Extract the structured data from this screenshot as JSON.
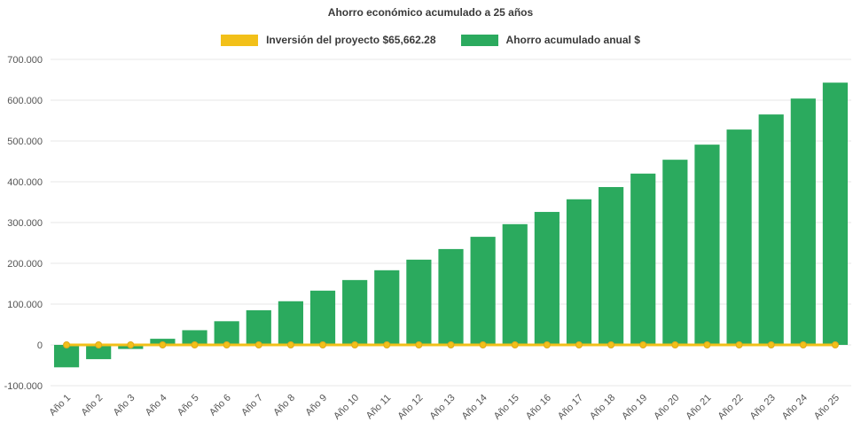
{
  "title": "Ahorro económico acumulado a 25 años",
  "legend": [
    {
      "label": "Inversión del proyecto $65,662.28",
      "color": "#F2C019"
    },
    {
      "label": "Ahorro acumulado anual $",
      "color": "#2BAA5E"
    }
  ],
  "chart_data": {
    "type": "bar",
    "title": "Ahorro económico acumulado a 25 años",
    "xlabel": "",
    "ylabel": "",
    "grid": true,
    "legend_position": "top",
    "ylim": [
      -100000,
      700000
    ],
    "ytick_step": 100000,
    "ytick_labels": [
      "-100.000",
      "0",
      "100.000",
      "200.000",
      "300.000",
      "400.000",
      "500.000",
      "600.000",
      "700.000"
    ],
    "categories": [
      "Año 1",
      "Año 2",
      "Año 3",
      "Año 4",
      "Año 5",
      "Año 6",
      "Año 7",
      "Año 8",
      "Año 9",
      "Año 10",
      "Año 11",
      "Año 12",
      "Año 13",
      "Año 14",
      "Año 15",
      "Año 16",
      "Año 17",
      "Año 18",
      "Año 19",
      "Año 20",
      "Año 21",
      "Año 22",
      "Año 23",
      "Año 24",
      "Año 25"
    ],
    "series": [
      {
        "name": "Inversión del proyecto $65,662.28",
        "type": "line",
        "color": "#F2C019",
        "values": [
          0,
          0,
          0,
          0,
          0,
          0,
          0,
          0,
          0,
          0,
          0,
          0,
          0,
          0,
          0,
          0,
          0,
          0,
          0,
          0,
          0,
          0,
          0,
          0,
          0
        ]
      },
      {
        "name": "Ahorro acumulado anual $",
        "type": "bar",
        "color": "#2BAA5E",
        "values": [
          -55000,
          -35000,
          -10000,
          15000,
          36000,
          58000,
          85000,
          107000,
          133000,
          159000,
          183000,
          209000,
          235000,
          265000,
          296000,
          326000,
          357000,
          387000,
          420000,
          454000,
          491000,
          528000,
          565000,
          604000,
          643000
        ]
      }
    ]
  }
}
